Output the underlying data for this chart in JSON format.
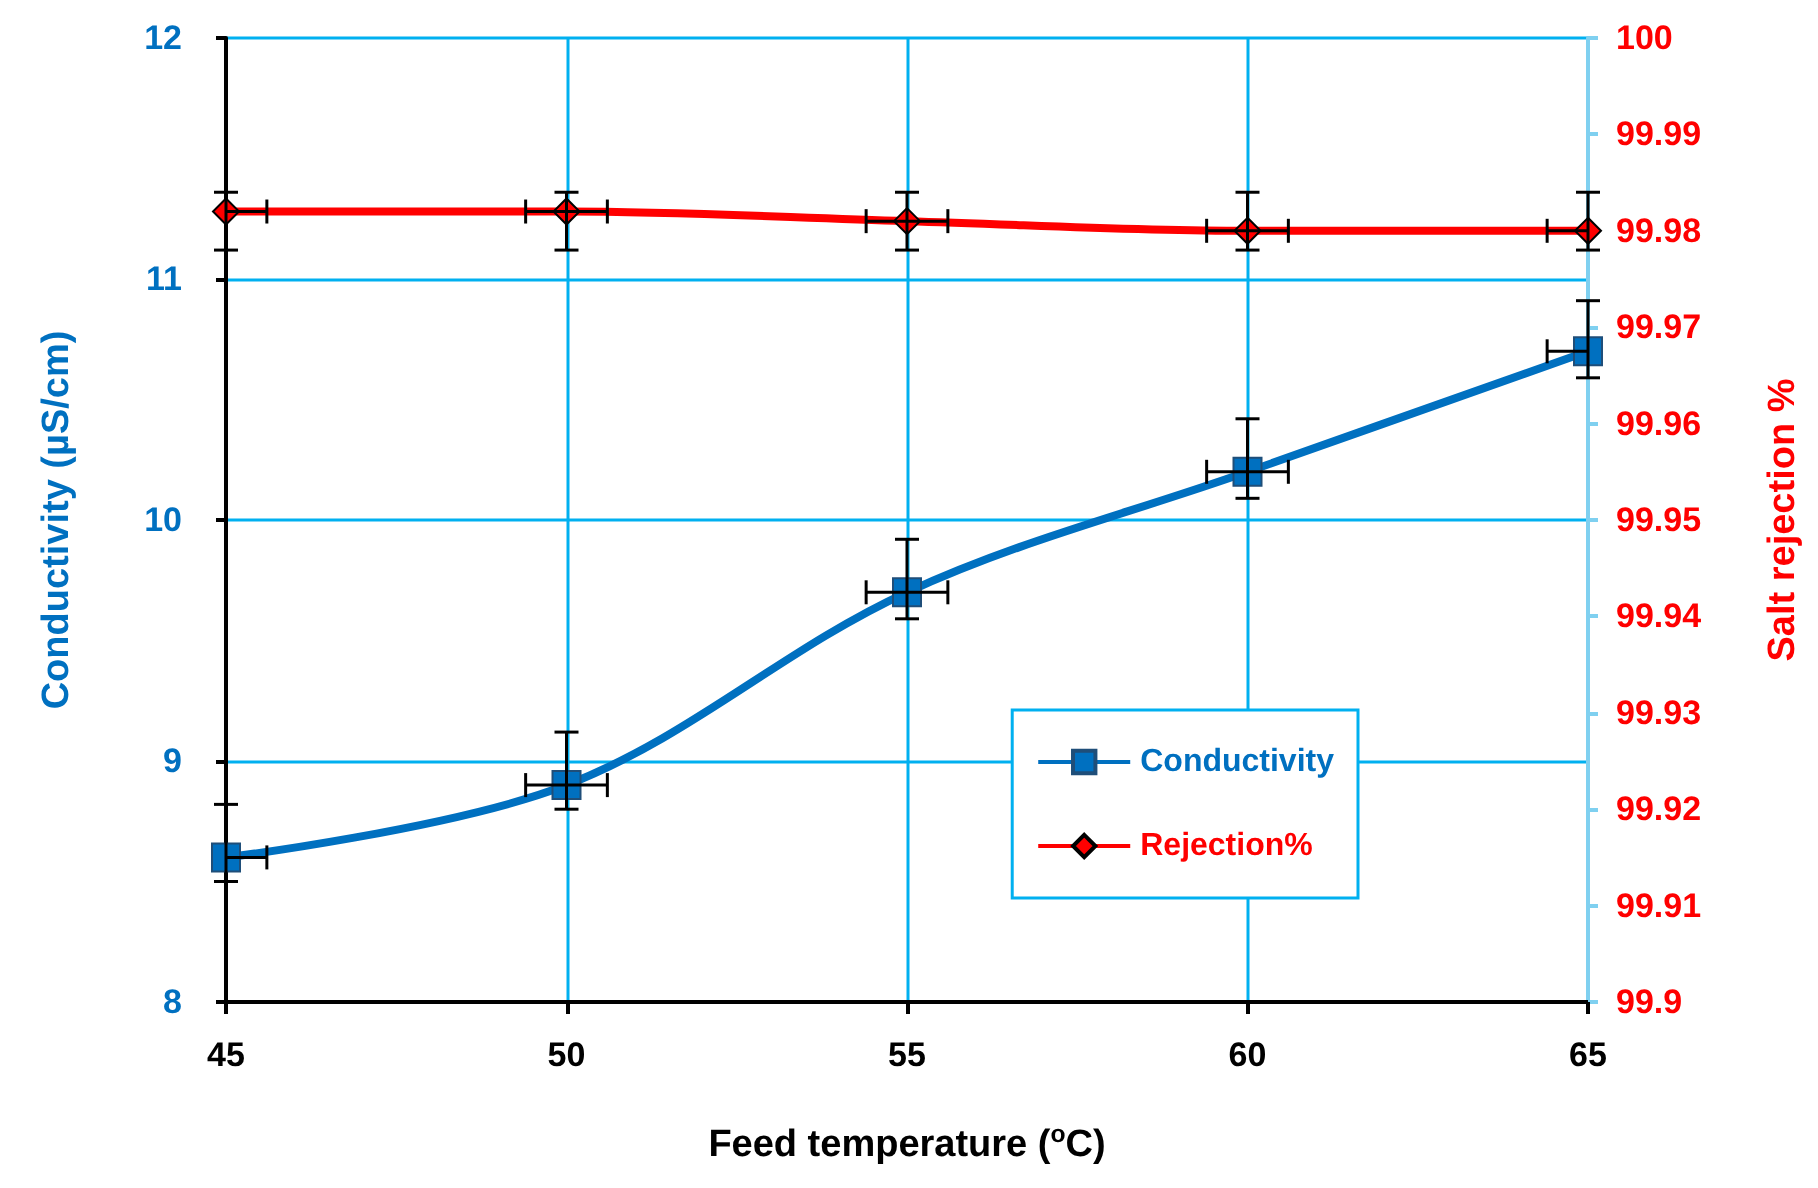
{
  "chart_data": {
    "type": "line",
    "xlabel": "Feed temperature ($^{o}$C)",
    "ylabel": "Conductivity (µS/cm)",
    "y2label": "Salt rejection %",
    "x": [
      45,
      50,
      55,
      60,
      65
    ],
    "series": [
      {
        "name": "Conductivity",
        "color": "#0070c0",
        "marker": "square",
        "values": [
          8.6,
          8.9,
          9.7,
          10.2,
          10.7
        ],
        "errors": [
          [
            8.5,
            8.82
          ],
          [
            8.8,
            9.12
          ],
          [
            9.59,
            9.92
          ],
          [
            10.09,
            10.42
          ],
          [
            10.59,
            10.91
          ]
        ],
        "xerrors": [
          [
            45,
            45.6
          ],
          0.6,
          0.6,
          0.6,
          [
            64.4,
            65
          ]
        ]
      },
      {
        "name": "Rejection%",
        "color": "#ff0000",
        "marker": "diamond",
        "axis": "y2",
        "values": [
          99.982,
          99.982,
          99.981,
          99.98,
          99.98
        ],
        "errors": [
          [
            99.978,
            99.984
          ],
          [
            99.978,
            99.984
          ],
          [
            99.978,
            99.984
          ],
          [
            99.978,
            99.984
          ],
          [
            99.978,
            99.984
          ]
        ],
        "xerrors": [
          [
            45,
            45.6
          ],
          0.6,
          0.6,
          0.6,
          [
            64.4,
            65
          ]
        ]
      }
    ],
    "xlim": [
      45,
      65
    ],
    "xticks": [
      45,
      50,
      55,
      60,
      65
    ],
    "ylim": [
      8,
      12
    ],
    "yticks": [
      8,
      9,
      10,
      11,
      12
    ],
    "y2lim": [
      99.9,
      100
    ],
    "y2ticks": [
      99.9,
      99.91,
      99.92,
      99.93,
      99.94,
      99.95,
      99.96,
      99.97,
      99.98,
      99.99,
      100
    ],
    "grid": true,
    "legend": "bottom right",
    "line_style": "solid"
  }
}
